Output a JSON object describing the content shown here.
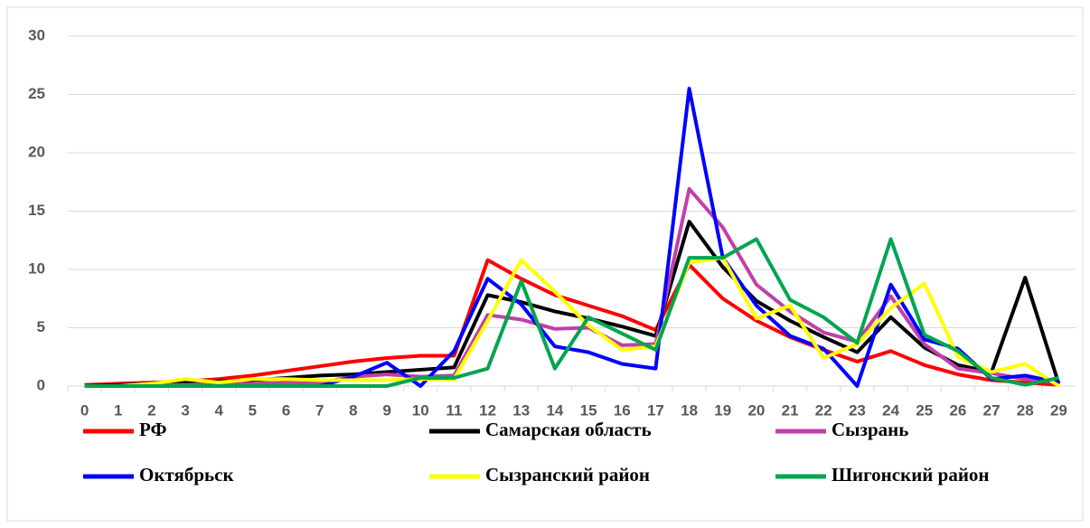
{
  "chart_data": {
    "type": "line",
    "categories": [
      "0",
      "1",
      "2",
      "3",
      "4",
      "5",
      "6",
      "7",
      "8",
      "9",
      "10",
      "11",
      "12",
      "13",
      "14",
      "15",
      "16",
      "17",
      "18",
      "19",
      "20",
      "21",
      "22",
      "23",
      "24",
      "25",
      "26",
      "27",
      "28",
      "29"
    ],
    "series": [
      {
        "name": "РФ",
        "color": "#ff0000",
        "values": [
          0.1,
          0.2,
          0.3,
          0.4,
          0.6,
          0.9,
          1.3,
          1.7,
          2.1,
          2.4,
          2.6,
          2.6,
          10.8,
          9.2,
          7.8,
          6.9,
          6.0,
          4.8,
          10.4,
          7.5,
          5.6,
          4.2,
          3.1,
          2.1,
          3.0,
          1.8,
          1.0,
          0.5,
          0.3,
          0.1
        ]
      },
      {
        "name": "Самарская область",
        "color": "#000000",
        "values": [
          0,
          0.1,
          0.2,
          0.3,
          0.4,
          0.5,
          0.7,
          0.9,
          1.0,
          1.2,
          1.4,
          1.6,
          7.8,
          7.2,
          6.4,
          5.8,
          5.1,
          4.3,
          14.1,
          10.2,
          7.3,
          5.6,
          4.2,
          2.9,
          5.9,
          3.3,
          1.8,
          1.2,
          9.3,
          0.2
        ]
      },
      {
        "name": "Сызрань",
        "color": "#c040a8",
        "values": [
          0,
          0,
          0.1,
          0.1,
          0.2,
          0.2,
          0.3,
          0.3,
          0.8,
          1.0,
          0.8,
          0.9,
          6.1,
          5.7,
          4.9,
          5.0,
          3.5,
          3.6,
          16.9,
          13.6,
          8.7,
          6.4,
          4.6,
          3.8,
          7.7,
          3.6,
          1.5,
          1.1,
          0.6,
          0.3
        ]
      },
      {
        "name": "Октябрьск",
        "color": "#0000ff",
        "values": [
          0,
          0,
          0,
          0,
          0,
          0,
          0,
          0,
          0.8,
          2.0,
          0,
          3.0,
          9.2,
          7.0,
          3.4,
          2.9,
          1.9,
          1.5,
          25.5,
          11,
          6.9,
          4.3,
          3.2,
          0,
          8.7,
          4.0,
          3.2,
          0.6,
          0.9,
          0.3
        ]
      },
      {
        "name": "Сызранский район",
        "color": "#ffff00",
        "values": [
          0,
          0,
          0.2,
          0.6,
          0.3,
          0.6,
          0.6,
          0.5,
          0.5,
          0.5,
          0.6,
          0.6,
          5.6,
          10.8,
          8.1,
          5.2,
          3.1,
          3.4,
          10.6,
          11,
          5.8,
          6.9,
          2.4,
          3.6,
          6.7,
          8.8,
          2.5,
          1.2,
          1.9,
          0
        ]
      },
      {
        "name": "Шигонский район",
        "color": "#00a550",
        "values": [
          0,
          0,
          0,
          0,
          0,
          0,
          0,
          0,
          0,
          0,
          0.7,
          0.7,
          1.5,
          9,
          1.5,
          5.9,
          4.5,
          3.1,
          11,
          11,
          12.6,
          7.4,
          5.9,
          3.7,
          12.6,
          4.4,
          3.0,
          0.7,
          0.1,
          0.7
        ]
      }
    ],
    "ylim": [
      0,
      30
    ],
    "yticks": [
      0,
      5,
      10,
      15,
      20,
      25,
      30
    ],
    "grid": true,
    "legend": "bottom"
  }
}
